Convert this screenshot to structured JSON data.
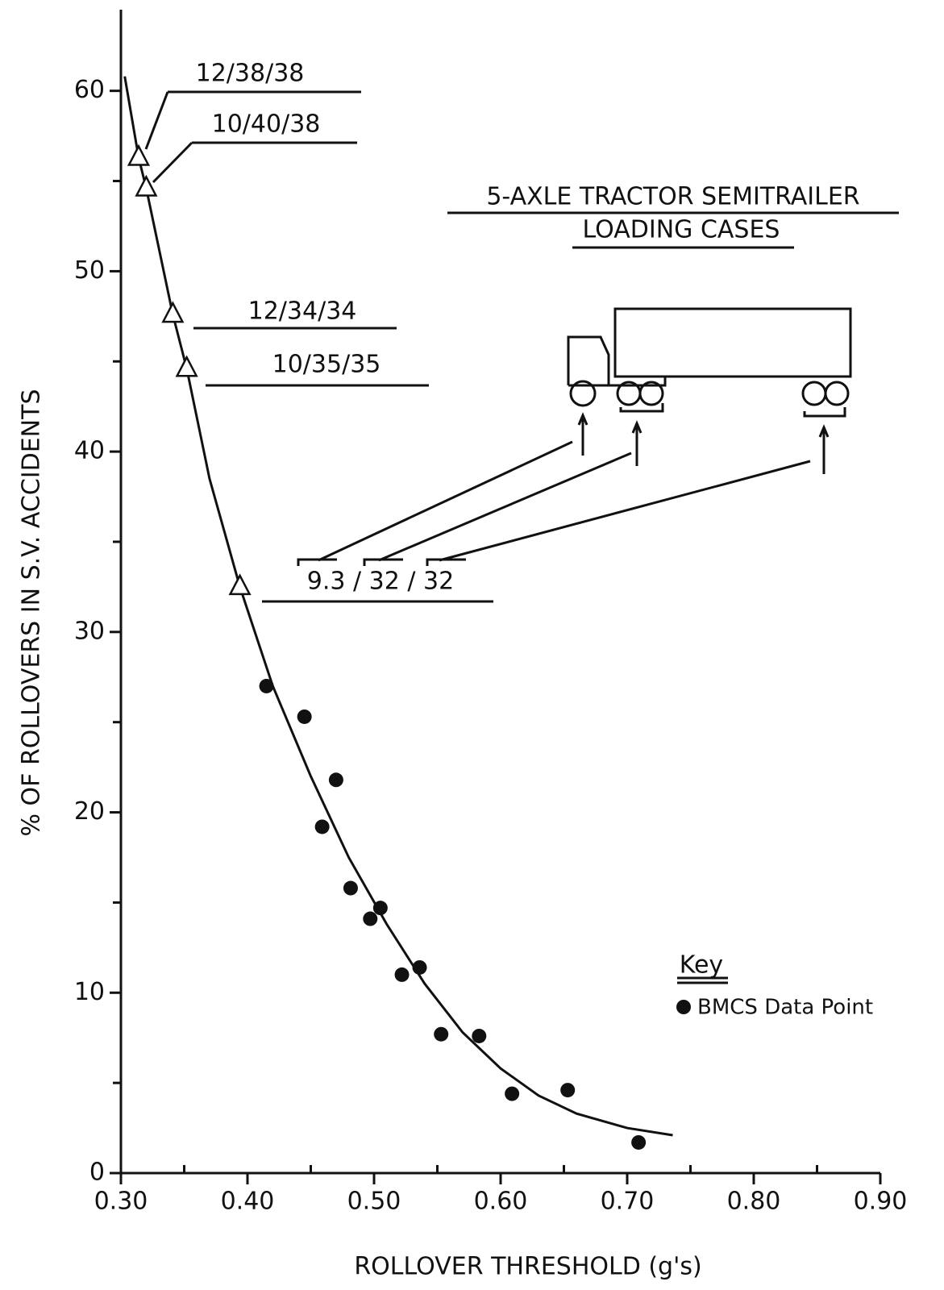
{
  "chart_data": {
    "type": "scatter",
    "title": [
      "5-AXLE TRACTOR SEMITRAILER",
      "LOADING CASES"
    ],
    "x_label": "ROLLOVER THRESHOLD (g's)",
    "y_label": "% OF ROLLOVERS IN S.V. ACCIDENTS",
    "legend_title": "Key",
    "xlim": [
      0.3,
      0.9
    ],
    "ylim": [
      0,
      64.5
    ],
    "xticks": [
      {
        "value": 0.3,
        "label": "0.30"
      },
      {
        "value": 0.4,
        "label": "0.40"
      },
      {
        "value": 0.5,
        "label": "0.50"
      },
      {
        "value": 0.6,
        "label": "0.60"
      },
      {
        "value": 0.7,
        "label": "0.70"
      },
      {
        "value": 0.8,
        "label": "0.80"
      },
      {
        "value": 0.9,
        "label": "0.90"
      }
    ],
    "xminor_ticks": [
      0.35,
      0.45,
      0.55,
      0.65,
      0.75,
      0.85
    ],
    "yticks": [
      0,
      10,
      20,
      30,
      40,
      50,
      60
    ],
    "yminor_ticks": [
      5,
      15,
      25,
      35,
      45,
      55
    ],
    "grid": false,
    "series": [
      {
        "marker": "line",
        "color": "#111111",
        "x": [
          0.303,
          0.314,
          0.32,
          0.341,
          0.352,
          0.37,
          0.394,
          0.42,
          0.45,
          0.48,
          0.51,
          0.54,
          0.57,
          0.6,
          0.63,
          0.66,
          0.7,
          0.736
        ],
        "values": [
          60.8,
          56.3,
          54.6,
          47.6,
          44.6,
          38.5,
          32.5,
          27,
          22,
          17.5,
          13.8,
          10.5,
          7.8,
          5.8,
          4.3,
          3.3,
          2.5,
          2.1
        ]
      },
      {
        "marker": "triangle",
        "color": "#111111",
        "x": [
          0.314,
          0.32,
          0.341,
          0.352,
          0.394
        ],
        "values": [
          56.3,
          54.6,
          47.6,
          44.6,
          32.5
        ],
        "labels": [
          "12/38/38",
          "10/40/38",
          "12/34/34",
          "10/35/35",
          "9.3 / 32 / 32"
        ]
      },
      {
        "name": "BMCS Data Point",
        "marker": "circle",
        "color": "#111111",
        "x": [
          0.415,
          0.445,
          0.47,
          0.459,
          0.4815,
          0.497,
          0.505,
          0.522,
          0.536,
          0.553,
          0.583,
          0.609,
          0.653,
          0.709
        ],
        "values": [
          27.0,
          25.3,
          21.8,
          19.2,
          15.8,
          14.1,
          14.7,
          11.0,
          11.4,
          7.7,
          7.6,
          4.4,
          4.6,
          1.7
        ]
      }
    ]
  }
}
